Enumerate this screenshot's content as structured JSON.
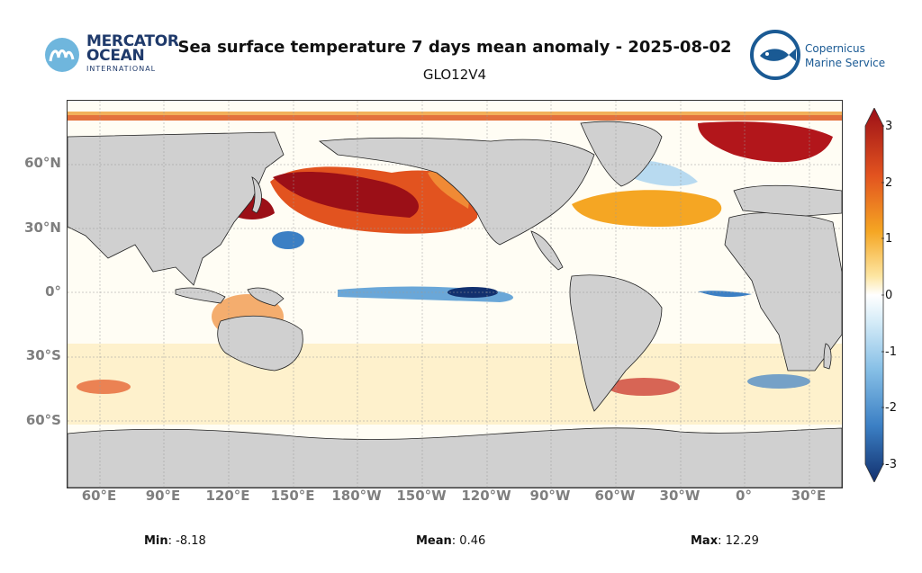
{
  "header": {
    "title": "Sea surface temperature 7 days mean anomaly - 2025-08-02",
    "subtitle": "GLO12V4"
  },
  "logos": {
    "left": {
      "line1": "MERCATOR",
      "line2": "OCEAN",
      "line3": "INTERNATIONAL"
    },
    "right": {
      "line1": "Copernicus",
      "line2": "Marine Service"
    }
  },
  "map": {
    "lat_labels": [
      "60°N",
      "30°N",
      "0°",
      "30°S",
      "60°S"
    ],
    "lon_labels": [
      "60°E",
      "90°E",
      "120°E",
      "150°E",
      "180°W",
      "150°W",
      "120°W",
      "90°W",
      "60°W",
      "30°W",
      "0°",
      "30°E"
    ]
  },
  "colorbar": {
    "ticks": [
      "3",
      "2",
      "1",
      "0",
      "-1",
      "-2",
      "-3"
    ],
    "colors": {
      "warm_dark": "#9b0f17",
      "warm": "#e2531f",
      "orange": "#f5a623",
      "yellow": "#fde6a3",
      "neutral": "#ffffff",
      "light_blue": "#b8daf0",
      "blue": "#3b7fc4",
      "dark_blue": "#12306e",
      "land": "#d0d0d0"
    }
  },
  "stats": {
    "min_label": "Min",
    "min_value": ": -8.18",
    "mean_label": "Mean",
    "mean_value": ": 0.46",
    "max_label": "Max",
    "max_value": ": 12.29"
  }
}
